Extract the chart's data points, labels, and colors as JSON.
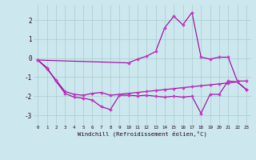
{
  "background_color": "#cce8ee",
  "grid_color": "#aacccc",
  "line_color": "#990099",
  "marker_color": "#cc33cc",
  "xlabel": "Windchill (Refroidissement éolien,°C)",
  "xlim": [
    -0.5,
    23.5
  ],
  "ylim": [
    -3.5,
    2.8
  ],
  "yticks": [
    -3,
    -2,
    -1,
    0,
    1,
    2
  ],
  "xticks": [
    0,
    1,
    2,
    3,
    4,
    5,
    6,
    7,
    8,
    9,
    10,
    11,
    12,
    13,
    14,
    15,
    16,
    17,
    18,
    19,
    20,
    21,
    22,
    23
  ],
  "series1_x": [
    0,
    1,
    2,
    3,
    4,
    5,
    6,
    7,
    8,
    9,
    10,
    11,
    12,
    13,
    14,
    15,
    16,
    17,
    18,
    19,
    20,
    21,
    22,
    23
  ],
  "series1_y": [
    -0.1,
    -0.55,
    -1.15,
    -1.75,
    -1.9,
    -1.95,
    -1.85,
    -1.8,
    -1.95,
    -1.9,
    -1.85,
    -1.8,
    -1.75,
    -1.7,
    -1.65,
    -1.6,
    -1.55,
    -1.5,
    -1.45,
    -1.4,
    -1.35,
    -1.3,
    -1.25,
    -1.65
  ],
  "series2_x": [
    0,
    1,
    2,
    3,
    4,
    5,
    6,
    7,
    8,
    9,
    10,
    11,
    12,
    13,
    14,
    15,
    16,
    17,
    18,
    19,
    20,
    21,
    22,
    23
  ],
  "series2_y": [
    -0.1,
    -0.5,
    -1.2,
    -1.85,
    -2.05,
    -2.1,
    -2.2,
    -2.55,
    -2.7,
    -1.95,
    -1.95,
    -1.98,
    -1.95,
    -2.0,
    -2.05,
    -2.0,
    -2.05,
    -2.0,
    -2.9,
    -1.9,
    -1.9,
    -1.2,
    -1.25,
    -1.65
  ],
  "series3_x": [
    0,
    10,
    11,
    12,
    13,
    14,
    15,
    16,
    17,
    18,
    19,
    20,
    21,
    22,
    23
  ],
  "series3_y": [
    -0.1,
    -0.25,
    -0.05,
    0.1,
    0.35,
    1.6,
    2.2,
    1.75,
    2.4,
    0.05,
    -0.05,
    0.05,
    0.05,
    -1.2,
    -1.2
  ]
}
